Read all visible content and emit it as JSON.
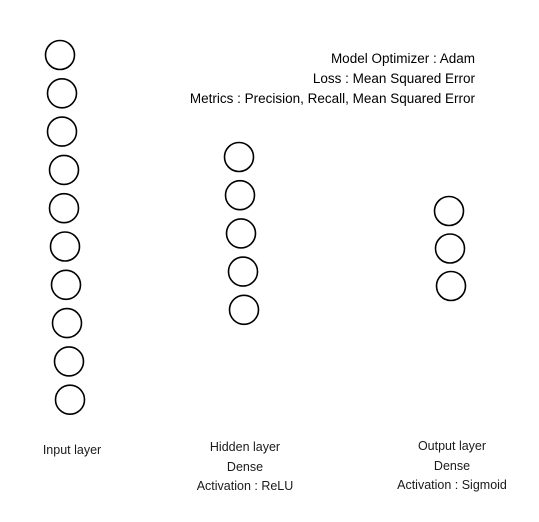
{
  "model_info": {
    "optimizer": "Model Optimizer : Adam",
    "loss": "Loss : Mean Squared Error",
    "metrics": "Metrics : Precision, Recall, Mean Squared Error"
  },
  "layers": [
    {
      "id": "input",
      "name": "Input layer",
      "type": "",
      "activation": "",
      "node_count": 10
    },
    {
      "id": "hidden",
      "name": "Hidden layer",
      "type": "Dense",
      "activation": "Activation : ReLU",
      "node_count": 5
    },
    {
      "id": "output",
      "name": "Output layer",
      "type": "Dense",
      "activation": "Activation : Sigmoid",
      "node_count": 3
    }
  ]
}
